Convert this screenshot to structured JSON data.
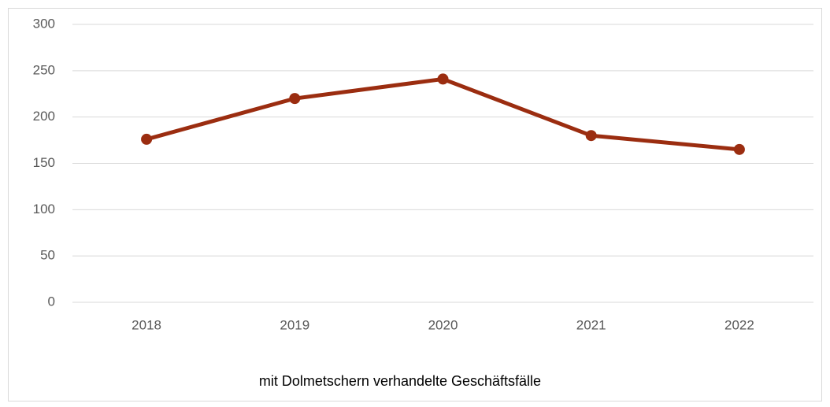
{
  "chart_data": {
    "type": "line",
    "categories": [
      "2018",
      "2019",
      "2020",
      "2021",
      "2022"
    ],
    "series": [
      {
        "name": "mit Dolmetschern verhandelte Geschäftsfälle",
        "color": "#9b2d10",
        "values": [
          176,
          220,
          241,
          180,
          165
        ]
      }
    ],
    "ylim": [
      0,
      300
    ],
    "yticks": [
      0,
      50,
      100,
      150,
      200,
      250,
      300
    ],
    "grid": true
  }
}
